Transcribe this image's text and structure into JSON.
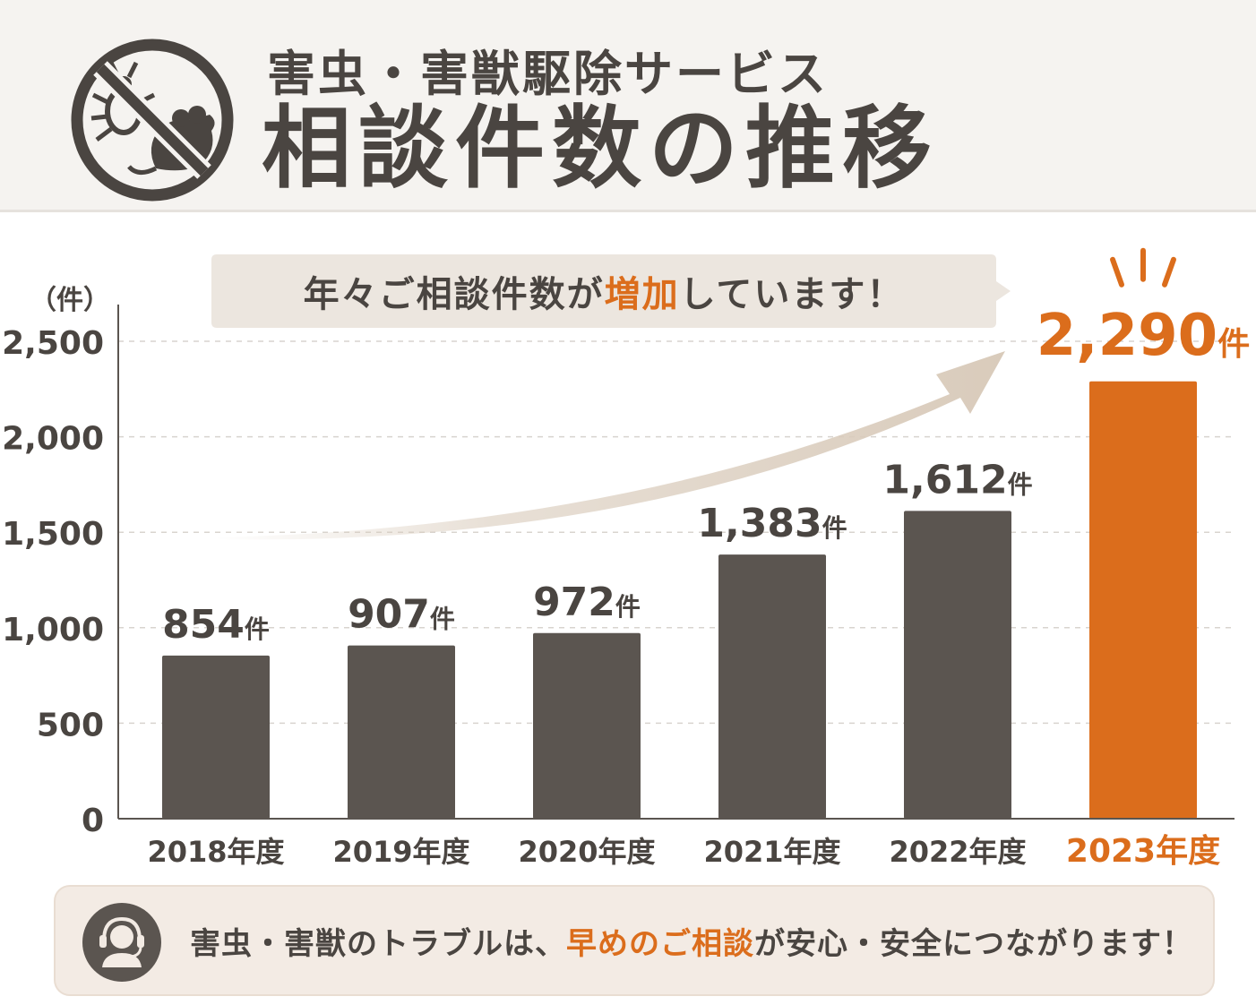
{
  "header": {
    "subtitle": "害虫・害獣駆除サービス",
    "title": "相談件数の推移",
    "logo_icon": "no-pests-icon"
  },
  "callout": {
    "text_before": "年々ご相談件数が",
    "text_highlight": "増加",
    "text_after": "しています！"
  },
  "colors": {
    "bar": "#5b5550",
    "highlight": "#db6d1c",
    "text": "#4a4541",
    "arrow": "#d9cbbb"
  },
  "chart_data": {
    "type": "bar",
    "unit_label": "（件）",
    "categories": [
      "2018年度",
      "2019年度",
      "2020年度",
      "2021年度",
      "2022年度",
      "2023年度"
    ],
    "values": [
      854,
      907,
      972,
      1383,
      1612,
      2290
    ],
    "value_labels": [
      "854",
      "907",
      "972",
      "1,383",
      "1,612",
      "2,290"
    ],
    "value_unit": "件",
    "highlight_index": 5,
    "ylim": [
      0,
      2500
    ],
    "yticks": [
      0,
      500,
      1000,
      1500,
      2000,
      2500
    ],
    "ytick_labels": [
      "0",
      "500",
      "1,000",
      "1,500",
      "2,000",
      "2,500"
    ],
    "grid": true,
    "trend_arrow": true
  },
  "footer": {
    "icon": "headset-operator-icon",
    "text_before": "害虫・害獣のトラブルは、",
    "text_highlight": "早めのご相談",
    "text_after": "が安心・安全につながります！"
  }
}
